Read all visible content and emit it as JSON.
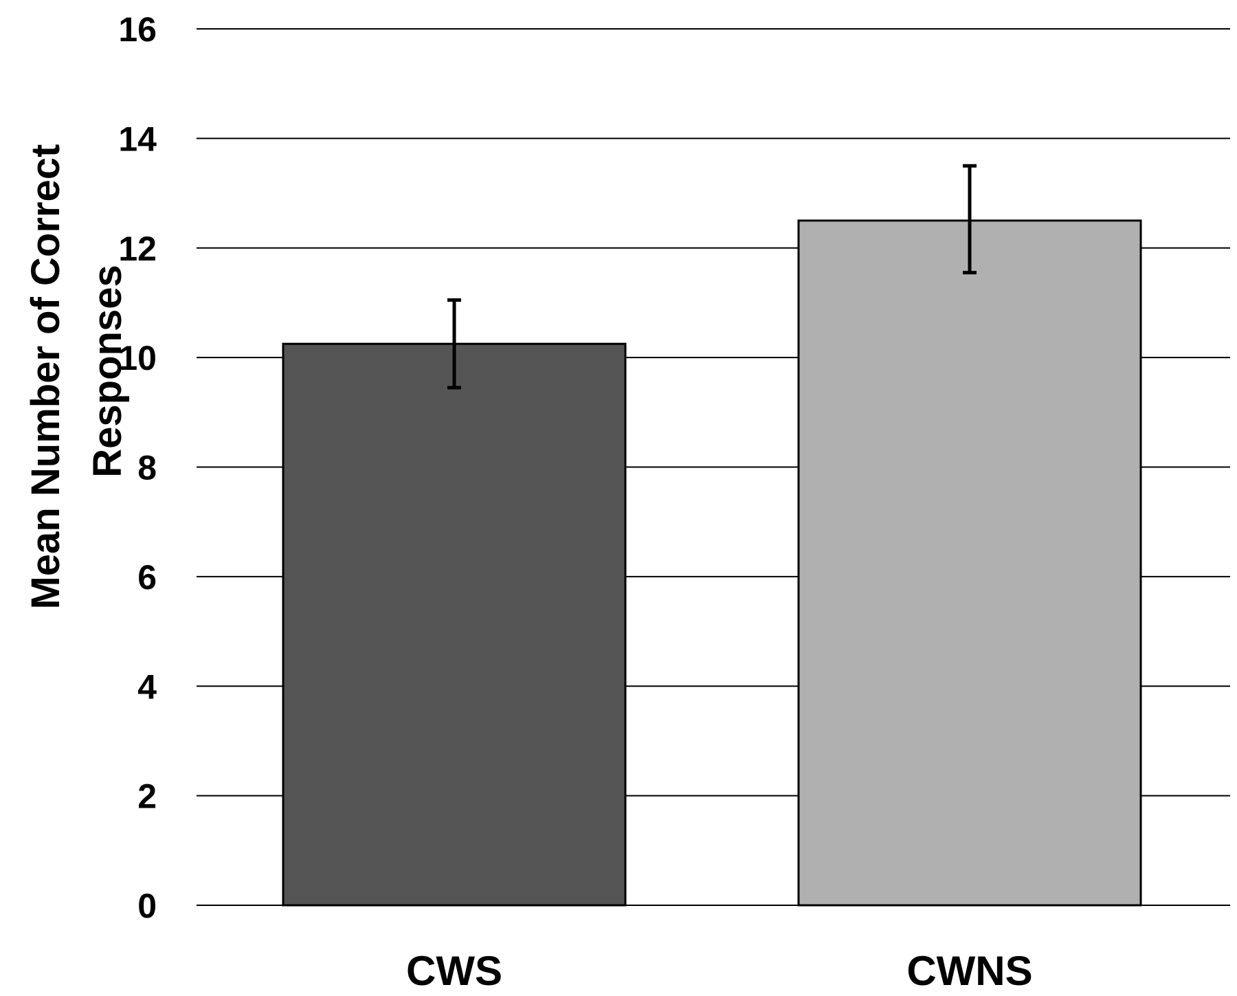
{
  "chart_data": {
    "type": "bar",
    "categories": [
      "CWS",
      "CWNS"
    ],
    "values": [
      10.25,
      12.5
    ],
    "error_bars": [
      {
        "lower": 9.45,
        "upper": 11.05
      },
      {
        "lower": 11.55,
        "upper": 13.5
      }
    ],
    "bar_colors": [
      "#555555",
      "#b0b0b0"
    ],
    "title": "",
    "xlabel": "",
    "ylabel_lines": [
      "Mean Number of Correct",
      "Responses"
    ],
    "ylim": [
      0,
      16
    ],
    "yticks": [
      0,
      2,
      4,
      6,
      8,
      10,
      12,
      14,
      16
    ],
    "grid": "horizontal",
    "legend": "none"
  }
}
